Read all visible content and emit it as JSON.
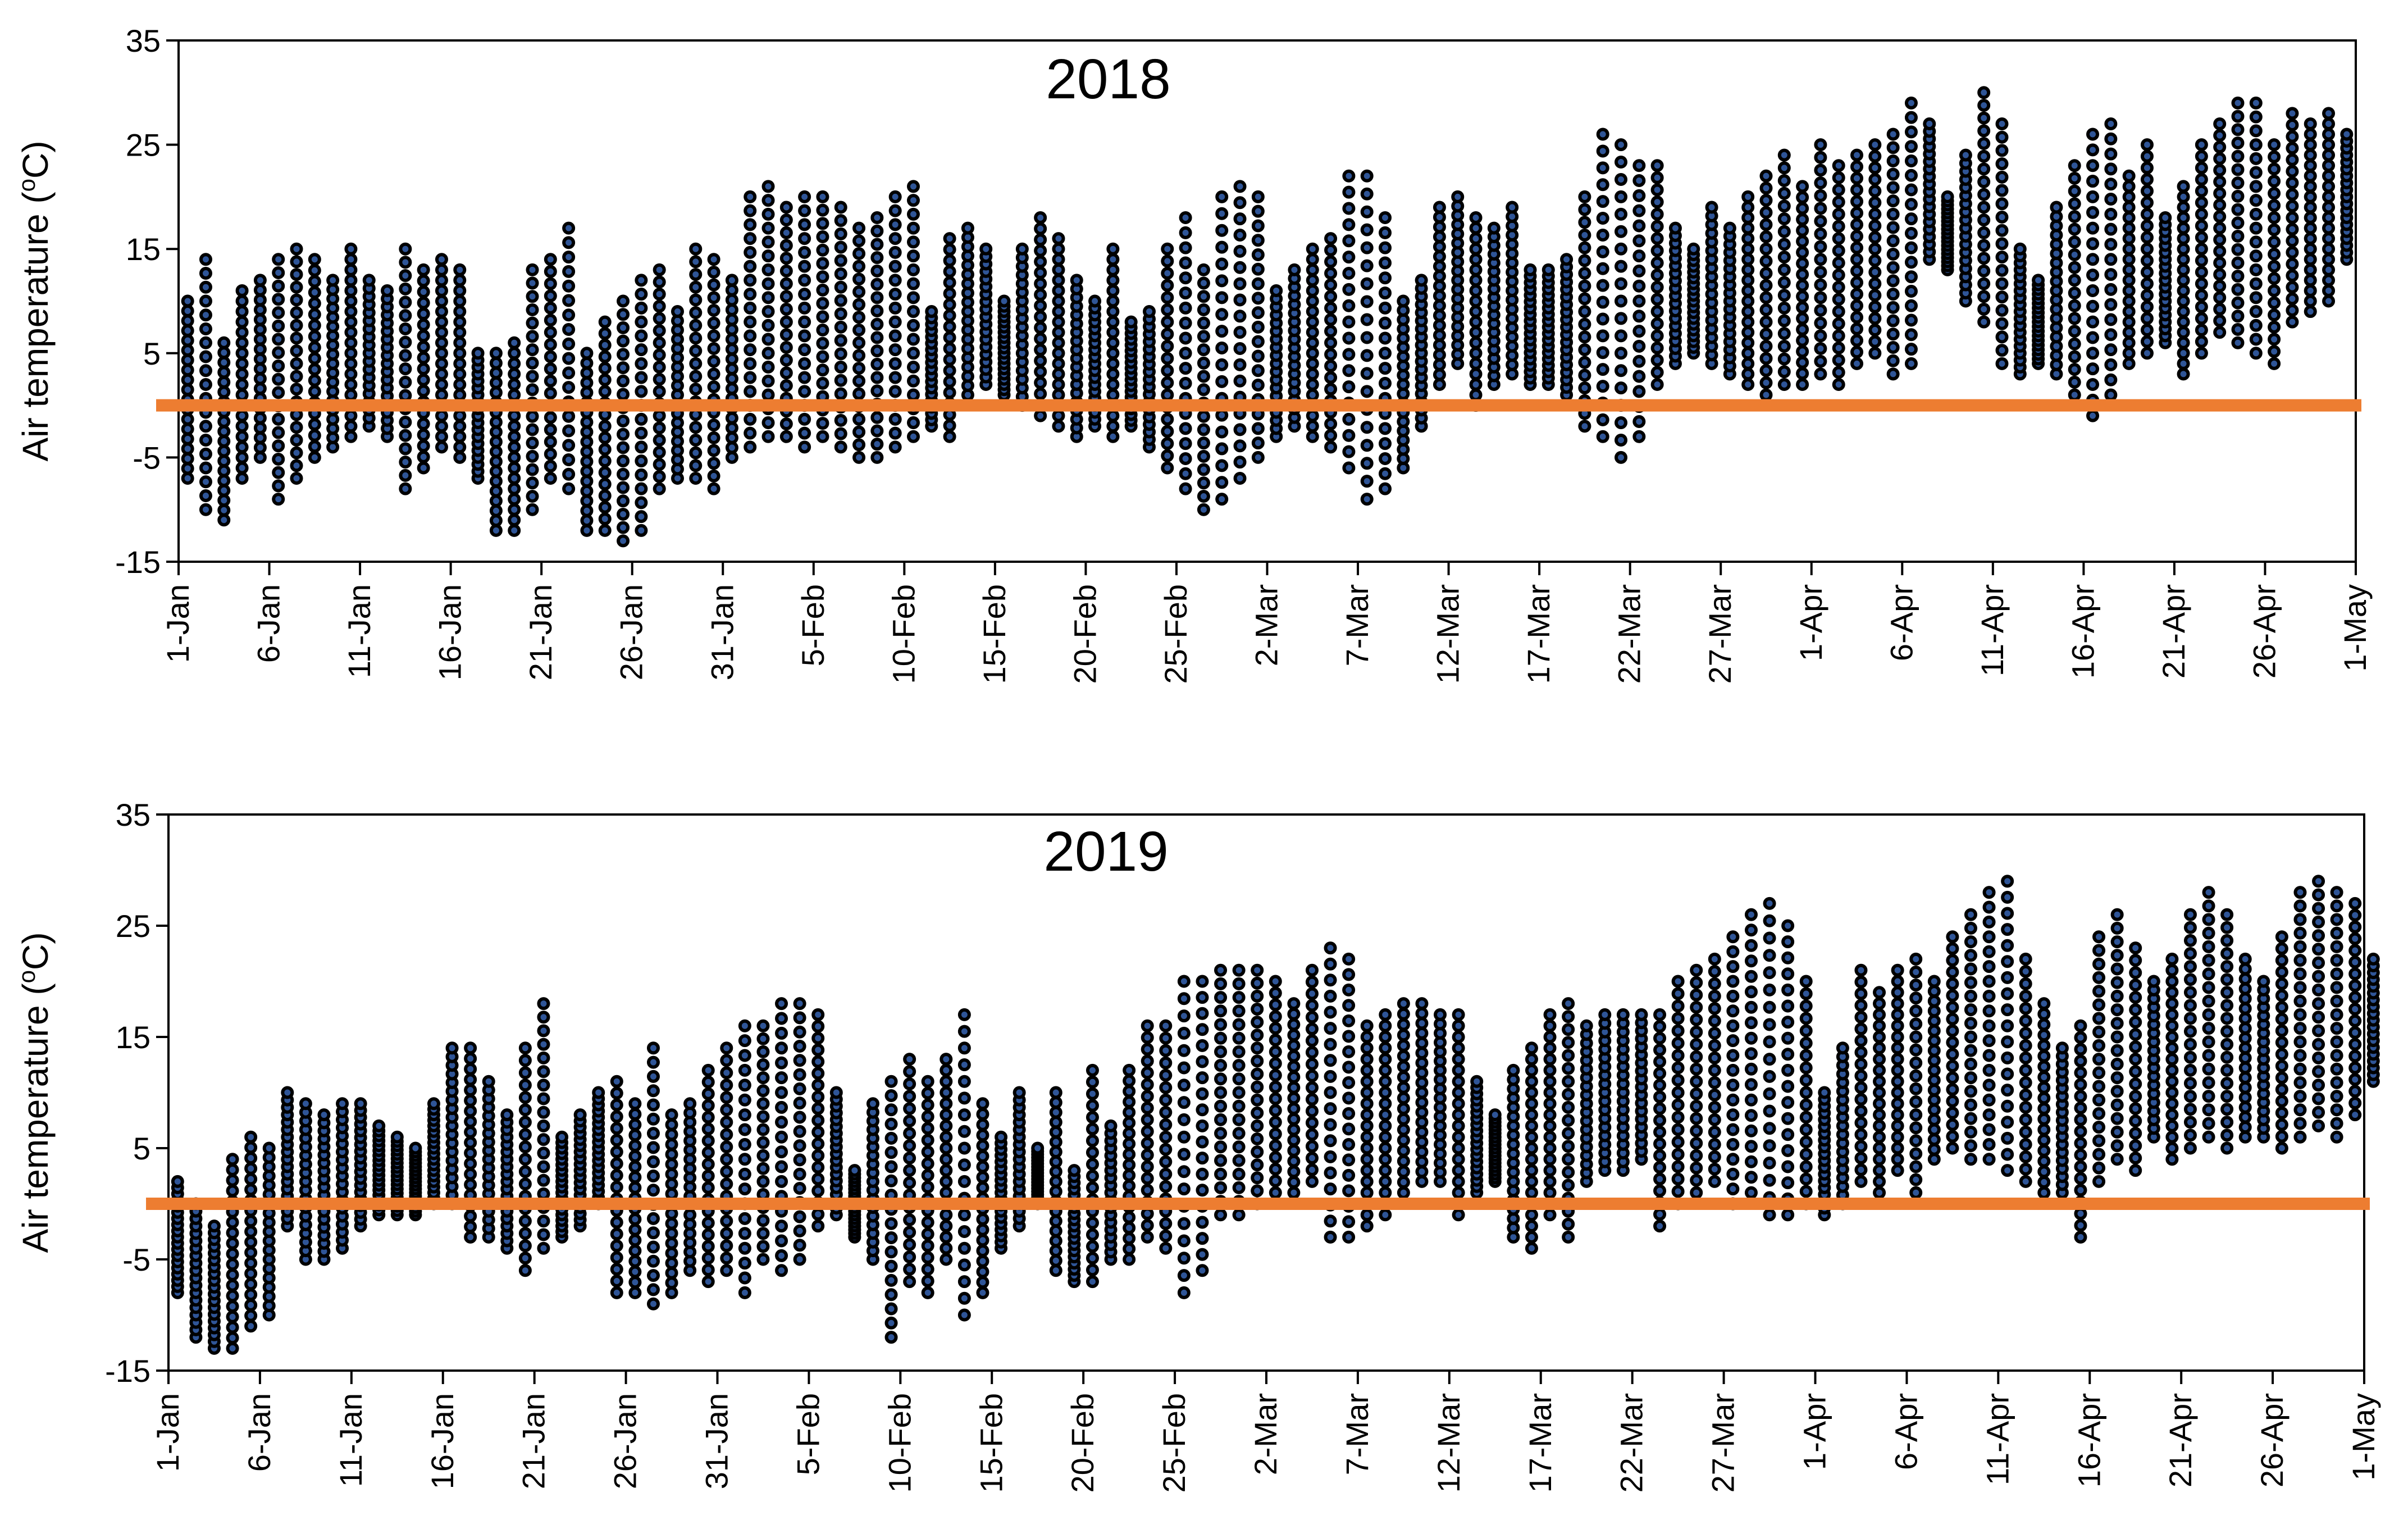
{
  "chart_data": [
    {
      "type": "scatter",
      "title": "2018",
      "ylabel": "Air temperature (oC)",
      "ylabel_base": "Air temperature (",
      "ylabel_sup": "o",
      "ylabel_end": "C)",
      "xlabel": "",
      "ylim": [
        -15,
        35
      ],
      "yticks": [
        "-15",
        "-5",
        "5",
        "15",
        "25",
        "35"
      ],
      "x_range_days": [
        0,
        120
      ],
      "xticks": [
        {
          "day": 0,
          "label": "1-Jan"
        },
        {
          "day": 5,
          "label": "6-Jan"
        },
        {
          "day": 10,
          "label": "11-Jan"
        },
        {
          "day": 15,
          "label": "16-Jan"
        },
        {
          "day": 20,
          "label": "21-Jan"
        },
        {
          "day": 25,
          "label": "26-Jan"
        },
        {
          "day": 30,
          "label": "31-Jan"
        },
        {
          "day": 35,
          "label": "5-Feb"
        },
        {
          "day": 40,
          "label": "10-Feb"
        },
        {
          "day": 45,
          "label": "15-Feb"
        },
        {
          "day": 50,
          "label": "20-Feb"
        },
        {
          "day": 55,
          "label": "25-Feb"
        },
        {
          "day": 60,
          "label": "2-Mar"
        },
        {
          "day": 65,
          "label": "7-Mar"
        },
        {
          "day": 70,
          "label": "12-Mar"
        },
        {
          "day": 75,
          "label": "17-Mar"
        },
        {
          "day": 80,
          "label": "22-Mar"
        },
        {
          "day": 85,
          "label": "27-Mar"
        },
        {
          "day": 90,
          "label": "1-Apr"
        },
        {
          "day": 95,
          "label": "6-Apr"
        },
        {
          "day": 100,
          "label": "11-Apr"
        },
        {
          "day": 105,
          "label": "16-Apr"
        },
        {
          "day": 110,
          "label": "21-Apr"
        },
        {
          "day": 115,
          "label": "26-Apr"
        },
        {
          "day": 120,
          "label": "1-May"
        }
      ],
      "reference_line": {
        "y": 0,
        "color": "#ED7D31"
      },
      "marker": {
        "fill": "#2F5597",
        "edge": "#000000"
      },
      "series_description": "Hourly air temperature, plotted as one column of points per day",
      "daily_min": [
        -7,
        -10,
        -11,
        -7,
        -5,
        -9,
        -7,
        -5,
        -4,
        -3,
        -2,
        -3,
        -8,
        -6,
        -4,
        -5,
        -7,
        -12,
        -12,
        -10,
        -7,
        -8,
        -12,
        -12,
        -13,
        -12,
        -8,
        -7,
        -7,
        -8,
        -5,
        -4,
        -3,
        -3,
        -4,
        -3,
        -4,
        -5,
        -5,
        -4,
        -3,
        -2,
        -3,
        1,
        2,
        1,
        0,
        -1,
        -2,
        -3,
        -2,
        -3,
        -2,
        -4,
        -6,
        -8,
        -10,
        -9,
        -7,
        -5,
        -3,
        -2,
        -3,
        -4,
        -6,
        -9,
        -8,
        -6,
        -2,
        2,
        4,
        0,
        2,
        3,
        2,
        2,
        1,
        -2,
        -3,
        -5,
        -3,
        2,
        4,
        5,
        4,
        3,
        2,
        1,
        2,
        2,
        3,
        2,
        4,
        5,
        3,
        4,
        14,
        13,
        10,
        8,
        4,
        3,
        4,
        3,
        1,
        -1,
        1,
        4,
        5,
        6,
        3,
        5,
        7,
        6,
        5,
        4,
        8,
        9,
        10,
        14
      ],
      "daily_max": [
        10,
        14,
        6,
        11,
        12,
        14,
        15,
        14,
        12,
        15,
        12,
        11,
        15,
        13,
        14,
        13,
        5,
        5,
        6,
        13,
        14,
        17,
        5,
        8,
        10,
        12,
        13,
        9,
        15,
        14,
        12,
        20,
        21,
        19,
        20,
        20,
        19,
        17,
        18,
        20,
        21,
        9,
        16,
        17,
        15,
        10,
        15,
        18,
        16,
        12,
        10,
        15,
        8,
        9,
        15,
        18,
        13,
        20,
        21,
        20,
        11,
        13,
        15,
        16,
        22,
        22,
        18,
        10,
        12,
        19,
        20,
        18,
        17,
        19,
        13,
        13,
        14,
        20,
        26,
        25,
        23,
        23,
        17,
        15,
        19,
        17,
        20,
        22,
        24,
        21,
        25,
        23,
        24,
        25,
        26,
        29,
        27,
        20,
        24,
        30,
        27,
        15,
        12,
        19,
        23,
        26,
        27,
        22,
        25,
        18,
        21,
        25,
        27,
        29,
        29,
        25,
        28,
        27,
        28,
        26
      ]
    },
    {
      "type": "scatter",
      "title": "2019",
      "ylabel": "Air temperature (oC)",
      "ylabel_base": "Air temperature (",
      "ylabel_sup": "o",
      "ylabel_end": "C)",
      "xlabel": "",
      "ylim": [
        -15,
        35
      ],
      "yticks": [
        "-15",
        "-5",
        "5",
        "15",
        "25",
        "35"
      ],
      "x_range_days": [
        0,
        120
      ],
      "xticks": [
        {
          "day": 0,
          "label": "1-Jan"
        },
        {
          "day": 5,
          "label": "6-Jan"
        },
        {
          "day": 10,
          "label": "11-Jan"
        },
        {
          "day": 15,
          "label": "16-Jan"
        },
        {
          "day": 20,
          "label": "21-Jan"
        },
        {
          "day": 25,
          "label": "26-Jan"
        },
        {
          "day": 30,
          "label": "31-Jan"
        },
        {
          "day": 35,
          "label": "5-Feb"
        },
        {
          "day": 40,
          "label": "10-Feb"
        },
        {
          "day": 45,
          "label": "15-Feb"
        },
        {
          "day": 50,
          "label": "20-Feb"
        },
        {
          "day": 55,
          "label": "25-Feb"
        },
        {
          "day": 60,
          "label": "2-Mar"
        },
        {
          "day": 65,
          "label": "7-Mar"
        },
        {
          "day": 70,
          "label": "12-Mar"
        },
        {
          "day": 75,
          "label": "17-Mar"
        },
        {
          "day": 80,
          "label": "22-Mar"
        },
        {
          "day": 85,
          "label": "27-Mar"
        },
        {
          "day": 90,
          "label": "1-Apr"
        },
        {
          "day": 95,
          "label": "6-Apr"
        },
        {
          "day": 100,
          "label": "11-Apr"
        },
        {
          "day": 105,
          "label": "16-Apr"
        },
        {
          "day": 110,
          "label": "21-Apr"
        },
        {
          "day": 115,
          "label": "26-Apr"
        },
        {
          "day": 120,
          "label": "1-May"
        }
      ],
      "reference_line": {
        "y": 0,
        "color": "#ED7D31"
      },
      "marker": {
        "fill": "#2F5597",
        "edge": "#000000"
      },
      "series_description": "Hourly air temperature, plotted as one column of points per day",
      "daily_min": [
        -8,
        -12,
        -13,
        -13,
        -11,
        -10,
        -2,
        -5,
        -5,
        -4,
        -2,
        -1,
        -1,
        -1,
        0,
        0,
        -3,
        -3,
        -4,
        -6,
        -4,
        -3,
        -2,
        0,
        -8,
        -8,
        -9,
        -8,
        -6,
        -7,
        -6,
        -8,
        -5,
        -6,
        -5,
        -2,
        -1,
        -3,
        -5,
        -12,
        -7,
        -8,
        -5,
        -10,
        -8,
        -4,
        -2,
        0,
        -6,
        -7,
        -7,
        -5,
        -5,
        -3,
        -4,
        -8,
        -6,
        -1,
        -1,
        0,
        1,
        1,
        2,
        -3,
        -3,
        -2,
        -1,
        1,
        2,
        2,
        -1,
        1,
        2,
        -3,
        -4,
        -1,
        -3,
        2,
        3,
        3,
        4,
        -2,
        0,
        1,
        2,
        0,
        1,
        -1,
        -1,
        0,
        -1,
        0,
        2,
        1,
        3,
        1,
        4,
        5,
        4,
        4,
        3,
        2,
        1,
        1,
        -3,
        2,
        4,
        3,
        6,
        4,
        5,
        6,
        5,
        6,
        6,
        5,
        6,
        7,
        6,
        8,
        11
      ],
      "daily_max": [
        2,
        0,
        -2,
        4,
        6,
        5,
        10,
        9,
        8,
        9,
        9,
        7,
        6,
        5,
        9,
        14,
        14,
        11,
        8,
        14,
        18,
        6,
        8,
        10,
        11,
        9,
        14,
        8,
        9,
        12,
        14,
        16,
        16,
        18,
        18,
        17,
        10,
        3,
        9,
        11,
        13,
        11,
        13,
        17,
        9,
        6,
        10,
        5,
        10,
        3,
        12,
        7,
        12,
        16,
        16,
        20,
        20,
        21,
        21,
        21,
        20,
        18,
        21,
        23,
        22,
        16,
        17,
        18,
        18,
        17,
        17,
        11,
        8,
        12,
        14,
        17,
        18,
        16,
        17,
        17,
        17,
        17,
        20,
        21,
        22,
        24,
        26,
        27,
        25,
        20,
        10,
        14,
        21,
        19,
        21,
        22,
        20,
        24,
        26,
        28,
        29,
        22,
        18,
        14,
        16,
        24,
        26,
        23,
        20,
        22,
        26,
        28,
        26,
        22,
        20,
        24,
        28,
        29,
        28,
        27,
        22
      ]
    }
  ]
}
